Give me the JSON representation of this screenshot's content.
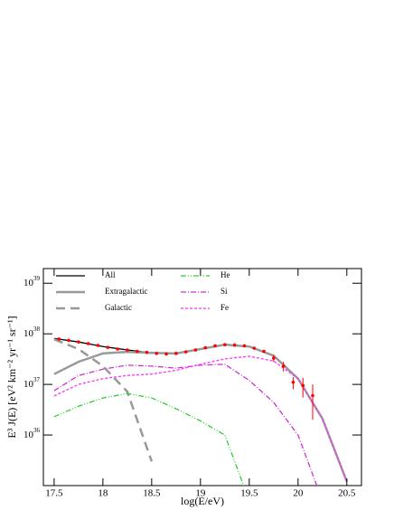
{
  "chart_data": {
    "type": "line",
    "xlabel": "log(E/eV)",
    "ylabel": "E³ J(E)  [eV² km⁻² yr⁻¹ sr⁻¹]",
    "log_y": true,
    "xlim": [
      17.39,
      20.65
    ],
    "ylim": [
      1e+35,
      1.95e+39
    ],
    "xticks": [
      17.5,
      18,
      18.5,
      19,
      19.5,
      20,
      20.5
    ],
    "yticks": [
      {
        "value": 1e+36,
        "label": "10^36"
      },
      {
        "value": 1e+37,
        "label": "10^37"
      },
      {
        "value": 1e+38,
        "label": "10^38"
      },
      {
        "value": 1e+39,
        "label": "10^39"
      }
    ],
    "legend": "top-left",
    "x": [
      17.5,
      17.75,
      18,
      18.25,
      18.5,
      18.75,
      19,
      19.25,
      19.5,
      19.75,
      20,
      20.25,
      20.5
    ],
    "series": [
      {
        "name": "All",
        "color": "#000000",
        "style": "solid",
        "values": [
          8.1e+37,
          6.9e+37,
          5.6e+37,
          4.8e+37,
          4.2e+37,
          4.1e+37,
          5e+37,
          6.1e+37,
          5.6e+37,
          3.7e+37,
          1.3e+37,
          2.1e+36,
          1.2e+35
        ]
      },
      {
        "name": "Extragalactic",
        "color": "#999999",
        "style": "thick",
        "values": [
          1.6e+37,
          2.8e+37,
          4.1e+37,
          4.4e+37,
          4.2e+37,
          4.1e+37,
          5e+37,
          6.1e+37,
          5.6e+37,
          3.7e+37,
          1.3e+37,
          2.1e+36,
          1.2e+35
        ]
      },
      {
        "name": "Galactic",
        "color": "#999999",
        "style": "long-dash",
        "values": [
          7.8e+37,
          5e+37,
          2.3e+37,
          7.2e+36,
          3e+35,
          null,
          null,
          null,
          null,
          null,
          null,
          null,
          null
        ]
      },
      {
        "name": "He",
        "color": "#33cc33",
        "style": "dash-dot-dot",
        "values": [
          2.3e+36,
          3.7e+36,
          5.4e+36,
          6.6e+36,
          5.4e+36,
          3.3e+36,
          1.9e+36,
          1e+36,
          5e+34,
          null,
          null,
          null,
          null
        ]
      },
      {
        "name": "Si",
        "color": "#cc33cc",
        "style": "dash-dot",
        "values": [
          7.5e+36,
          1.5e+37,
          2e+37,
          2.4e+37,
          2.3e+37,
          2.1e+37,
          2.4e+37,
          2.5e+37,
          1.2e+37,
          4.4e+36,
          1e+36,
          5e+34,
          null
        ]
      },
      {
        "name": "Fe",
        "color": "#ff33ff",
        "style": "dash",
        "values": [
          5.9e+36,
          1e+37,
          1.3e+37,
          1.5e+37,
          1.6e+37,
          1.9e+37,
          2.5e+37,
          3.2e+37,
          3.6e+37,
          2.9e+37,
          1.3e+37,
          2.1e+36,
          1.2e+35
        ]
      }
    ],
    "points": {
      "color": "#ff0000",
      "x": [
        17.55,
        17.65,
        17.75,
        17.85,
        17.95,
        18.05,
        18.15,
        18.25,
        18.35,
        18.45,
        18.55,
        18.65,
        18.75,
        18.85,
        18.95,
        19.05,
        19.15,
        19.25,
        19.35,
        19.45,
        19.55,
        19.65,
        19.75,
        19.85,
        19.95,
        20.05,
        20.15
      ],
      "values": [
        7.9e+37,
        7.4e+37,
        6.9e+37,
        6.4e+37,
        5.9e+37,
        5.4e+37,
        5e+37,
        4.8e+37,
        4.5e+37,
        4.3e+37,
        4.1e+37,
        4e+37,
        4.1e+37,
        4.4e+37,
        4.8e+37,
        5.3e+37,
        5.8e+37,
        6.1e+37,
        6e+37,
        5.8e+37,
        5.2e+37,
        4.5e+37,
        3.3e+37,
        2.3e+37,
        1.1e+37,
        9.5e+36,
        6e+36
      ],
      "errors": [
        null,
        null,
        null,
        null,
        null,
        null,
        null,
        null,
        null,
        null,
        null,
        null,
        null,
        null,
        null,
        null,
        null,
        null,
        null,
        null,
        null,
        null,
        5e+36,
        5e+36,
        3e+36,
        4e+36,
        4e+36
      ]
    }
  }
}
